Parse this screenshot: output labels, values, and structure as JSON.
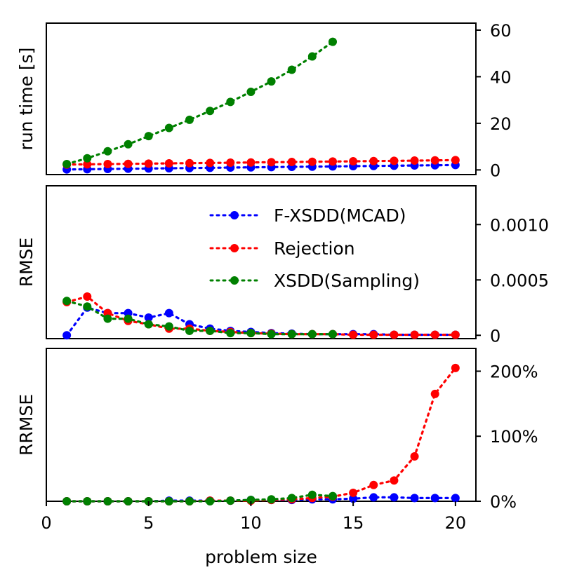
{
  "chart_data": {
    "type": "line",
    "shared_x": {
      "label": "problem size",
      "xlim": [
        0,
        21
      ],
      "ticks": [
        0,
        5,
        10,
        15,
        20
      ],
      "tick_labels": [
        "0",
        "5",
        "10",
        "15",
        "20"
      ]
    },
    "series_styles": [
      {
        "name": "F-XSDD(MCAD)",
        "color": "#0000ff"
      },
      {
        "name": "Rejection",
        "color": "#ff0000"
      },
      {
        "name": "XSDD(Sampling)",
        "color": "#008000"
      }
    ],
    "legend": {
      "location": "top-right of middle panel"
    },
    "panels": [
      {
        "id": "runtime",
        "ylabel": "run time [s]",
        "ylim": [
          -2,
          63
        ],
        "y_ticks": [
          0,
          20,
          40,
          60
        ],
        "y_tick_labels": [
          "0",
          "20",
          "40",
          "60"
        ],
        "series": [
          {
            "name": "F-XSDD(MCAD)",
            "x": [
              1,
              2,
              3,
              4,
              5,
              6,
              7,
              8,
              9,
              10,
              11,
              12,
              13,
              14,
              15,
              16,
              17,
              18,
              19,
              20
            ],
            "y": [
              0.2,
              0.3,
              0.4,
              0.5,
              0.6,
              0.7,
              0.8,
              0.9,
              1.0,
              1.1,
              1.2,
              1.3,
              1.4,
              1.5,
              1.6,
              1.7,
              1.8,
              1.9,
              2.0,
              2.1
            ]
          },
          {
            "name": "Rejection",
            "x": [
              1,
              2,
              3,
              4,
              5,
              6,
              7,
              8,
              9,
              10,
              11,
              12,
              13,
              14,
              15,
              16,
              17,
              18,
              19,
              20
            ],
            "y": [
              2.3,
              2.4,
              2.5,
              2.6,
              2.7,
              2.8,
              2.9,
              3.0,
              3.1,
              3.2,
              3.3,
              3.4,
              3.5,
              3.6,
              3.7,
              3.8,
              3.9,
              4.0,
              4.1,
              4.2
            ]
          },
          {
            "name": "XSDD(Sampling)",
            "x": [
              1,
              2,
              3,
              4,
              5,
              6,
              7,
              8,
              9,
              10,
              11,
              12,
              13,
              14
            ],
            "y": [
              2.5,
              5,
              8,
              11,
              14.5,
              18,
              21.5,
              25.3,
              29.2,
              33.5,
              38,
              43,
              48.7,
              55
            ]
          }
        ]
      },
      {
        "id": "rmse",
        "ylabel": "RMSE",
        "ylim": [
          -3e-05,
          0.00135
        ],
        "y_ticks": [
          0,
          0.0005,
          0.001
        ],
        "y_tick_labels": [
          "0",
          "0.0005",
          "0.0010"
        ],
        "series": [
          {
            "name": "F-XSDD(MCAD)",
            "x": [
              1,
              2,
              3,
              4,
              5,
              6,
              7,
              8,
              9,
              10,
              11,
              12,
              13,
              14,
              15,
              16,
              17,
              18,
              19,
              20
            ],
            "y": [
              0,
              0.00025,
              0.0002,
              0.0002,
              0.00016,
              0.0002,
              0.0001,
              6e-05,
              4e-05,
              3e-05,
              2e-05,
              1.5e-05,
              1e-05,
              1e-05,
              1e-05,
              1e-05,
              5e-06,
              5e-06,
              5e-06,
              5e-06
            ]
          },
          {
            "name": "Rejection",
            "x": [
              1,
              2,
              3,
              4,
              5,
              6,
              7,
              8,
              9,
              10,
              11,
              12,
              13,
              14,
              15,
              16,
              17,
              18,
              19,
              20
            ],
            "y": [
              0.0003,
              0.00035,
              0.0002,
              0.00013,
              0.0001,
              6e-05,
              6e-05,
              4e-05,
              3e-05,
              2e-05,
              1.5e-05,
              1e-05,
              1e-05,
              1e-05,
              5e-06,
              5e-06,
              5e-06,
              5e-06,
              5e-06,
              5e-06
            ]
          },
          {
            "name": "XSDD(Sampling)",
            "x": [
              1,
              2,
              3,
              4,
              5,
              6,
              7,
              8,
              9,
              10,
              11,
              12,
              13,
              14
            ],
            "y": [
              0.00031,
              0.00026,
              0.00015,
              0.00015,
              0.0001,
              8e-05,
              4e-05,
              4e-05,
              2e-05,
              2e-05,
              1e-05,
              1e-05,
              1e-05,
              1e-05
            ]
          }
        ]
      },
      {
        "id": "rrmse",
        "ylabel": "RRMSE",
        "ylim": [
          0,
          235
        ],
        "y_ticks": [
          0,
          100,
          200
        ],
        "y_tick_labels": [
          "0%",
          "100%",
          "200%"
        ],
        "series": [
          {
            "name": "F-XSDD(MCAD)",
            "x": [
              1,
              2,
              3,
              4,
              5,
              6,
              7,
              8,
              9,
              10,
              11,
              12,
              13,
              14,
              15,
              16,
              17,
              18,
              19,
              20
            ],
            "y": [
              0,
              0,
              0,
              0,
              0,
              1,
              1,
              1,
              1,
              2,
              2,
              2,
              3,
              3,
              4,
              6,
              6,
              5,
              5,
              5
            ]
          },
          {
            "name": "Rejection",
            "x": [
              1,
              2,
              3,
              4,
              5,
              6,
              7,
              8,
              9,
              10,
              11,
              12,
              13,
              14,
              15,
              16,
              17,
              18,
              19,
              20
            ],
            "y": [
              0,
              0,
              0,
              0,
              0,
              0,
              0,
              1,
              1,
              1,
              2,
              3,
              5,
              7,
              13,
              25,
              32,
              69,
              165,
              205
            ]
          },
          {
            "name": "XSDD(Sampling)",
            "x": [
              1,
              2,
              3,
              4,
              5,
              6,
              7,
              8,
              9,
              10,
              11,
              12,
              13,
              14
            ],
            "y": [
              0,
              0,
              0,
              0,
              0,
              0,
              0,
              0,
              1,
              2,
              3,
              5,
              10,
              8
            ]
          }
        ]
      }
    ]
  }
}
